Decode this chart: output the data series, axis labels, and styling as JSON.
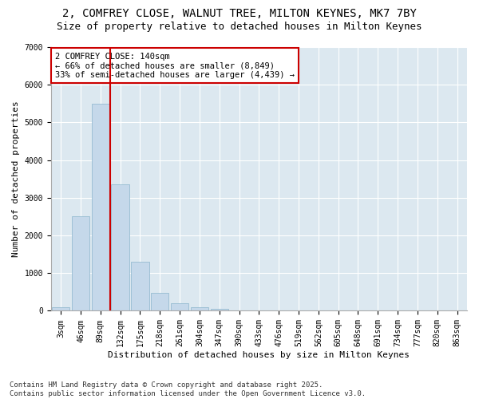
{
  "title_line1": "2, COMFREY CLOSE, WALNUT TREE, MILTON KEYNES, MK7 7BY",
  "title_line2": "Size of property relative to detached houses in Milton Keynes",
  "xlabel": "Distribution of detached houses by size in Milton Keynes",
  "ylabel": "Number of detached properties",
  "categories": [
    "3sqm",
    "46sqm",
    "89sqm",
    "132sqm",
    "175sqm",
    "218sqm",
    "261sqm",
    "304sqm",
    "347sqm",
    "390sqm",
    "433sqm",
    "476sqm",
    "519sqm",
    "562sqm",
    "605sqm",
    "648sqm",
    "691sqm",
    "734sqm",
    "777sqm",
    "820sqm",
    "863sqm"
  ],
  "values": [
    100,
    2500,
    5500,
    3350,
    1300,
    480,
    210,
    90,
    50,
    0,
    0,
    0,
    0,
    0,
    0,
    0,
    0,
    0,
    0,
    0,
    0
  ],
  "bar_color": "#c5d8ea",
  "bar_edge_color": "#8ab4cc",
  "vline_color": "#cc0000",
  "annotation_text": "2 COMFREY CLOSE: 140sqm\n← 66% of detached houses are smaller (8,849)\n33% of semi-detached houses are larger (4,439) →",
  "annotation_box_edgecolor": "#cc0000",
  "background_color": "#dce8f0",
  "grid_color": "#ffffff",
  "fig_background": "#ffffff",
  "ylim": [
    0,
    7000
  ],
  "yticks": [
    0,
    1000,
    2000,
    3000,
    4000,
    5000,
    6000,
    7000
  ],
  "footnote": "Contains HM Land Registry data © Crown copyright and database right 2025.\nContains public sector information licensed under the Open Government Licence v3.0.",
  "title_fontsize": 10,
  "subtitle_fontsize": 9,
  "axis_label_fontsize": 8,
  "tick_fontsize": 7,
  "annotation_fontsize": 7.5,
  "footnote_fontsize": 6.5
}
